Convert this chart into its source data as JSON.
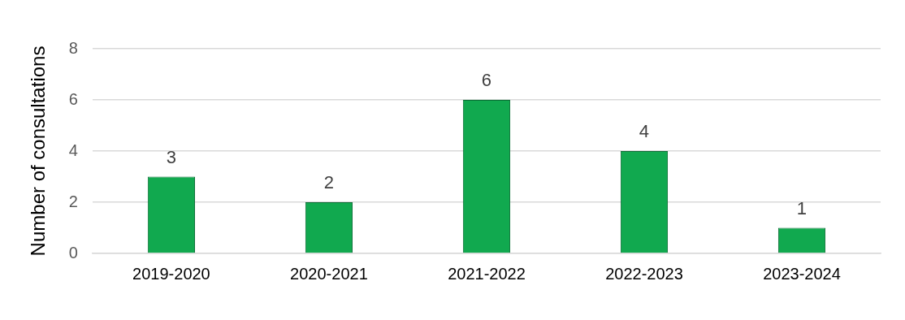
{
  "chart_data": {
    "type": "bar",
    "ylabel": "Number of consultations",
    "categories": [
      "2019-2020",
      "2020-2021",
      "2021-2022",
      "2022-2023",
      "2023-2024"
    ],
    "values": [
      3,
      2,
      6,
      4,
      1
    ],
    "color": "#11a94f",
    "ylim": [
      0,
      8
    ],
    "yticks": [
      0,
      2,
      4,
      6,
      8
    ],
    "grid": "y",
    "legend": false,
    "data_labels": true
  }
}
